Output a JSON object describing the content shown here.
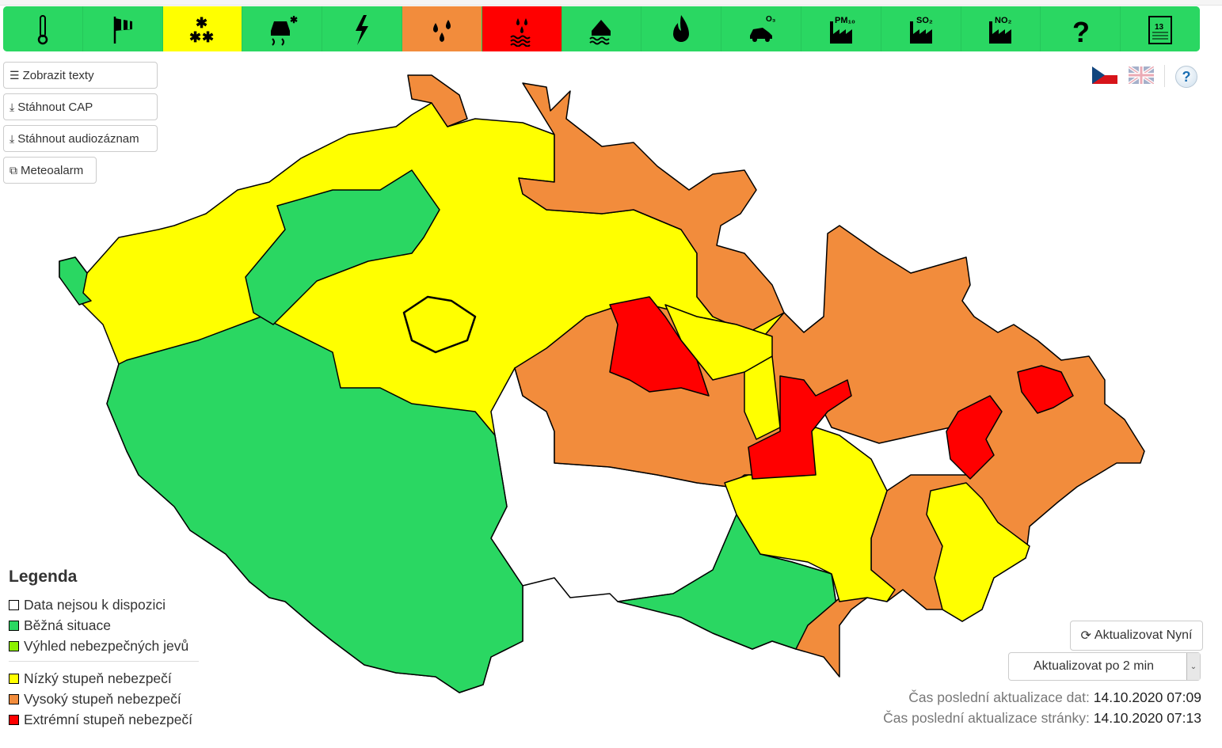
{
  "toolbar": {
    "items": [
      {
        "icon": "thermometer-icon",
        "level": "green"
      },
      {
        "icon": "windsock-icon",
        "level": "green"
      },
      {
        "icon": "snowflakes-icon",
        "level": "yellow"
      },
      {
        "icon": "slippery-road-icon",
        "level": "green"
      },
      {
        "icon": "lightning-icon",
        "level": "green"
      },
      {
        "icon": "rain-drops-icon",
        "level": "orange"
      },
      {
        "icon": "flood-rain-icon",
        "level": "red"
      },
      {
        "icon": "flooded-house-icon",
        "level": "green"
      },
      {
        "icon": "fire-icon",
        "level": "green"
      },
      {
        "icon": "car-ozone-icon",
        "level": "green",
        "label": "O3"
      },
      {
        "icon": "factory-pm10-icon",
        "level": "green",
        "label": "PM10"
      },
      {
        "icon": "factory-so2-icon",
        "level": "green",
        "label": "SO2"
      },
      {
        "icon": "factory-no2-icon",
        "level": "green",
        "label": "NO2"
      },
      {
        "icon": "question-icon",
        "level": "green",
        "label": "?"
      },
      {
        "icon": "calendar-icon",
        "level": "green",
        "label": "13"
      }
    ]
  },
  "colors": {
    "green": "#2ad762",
    "yellow": "#ffff00",
    "orange": "#f28c3c",
    "red": "#ff0000",
    "outlook": "#8cf000"
  },
  "buttons": {
    "show_texts": "Zobrazit texty",
    "download_cap": "Stáhnout CAP",
    "download_audio": "Stáhnout audiozáznam",
    "meteoalarm": "Meteoalarm",
    "refresh_now": "Aktualizovat Nyní"
  },
  "auto_refresh": {
    "selected": "Aktualizovat po 2 min"
  },
  "legend": {
    "title": "Legenda",
    "items": [
      {
        "label": "Data nejsou k dispozici",
        "color": "#ffffff"
      },
      {
        "label": "Běžná situace",
        "color": "#2ad762"
      },
      {
        "label": "Výhled nebezpečných jevů",
        "color": "#8cf000"
      },
      {
        "label": "Nízký stupeň nebezpečí",
        "color": "#ffff00"
      },
      {
        "label": "Vysoký stupeň nebezpečí",
        "color": "#f28c3c"
      },
      {
        "label": "Extrémní stupeň nebezpečí",
        "color": "#ff0000"
      }
    ]
  },
  "status": {
    "data_label": "Čas poslední aktualizace dat:",
    "data_time": "14.10.2020 07:09",
    "page_label": "Čas poslední aktualizace stránky:",
    "page_time": "14.10.2020 07:13"
  }
}
